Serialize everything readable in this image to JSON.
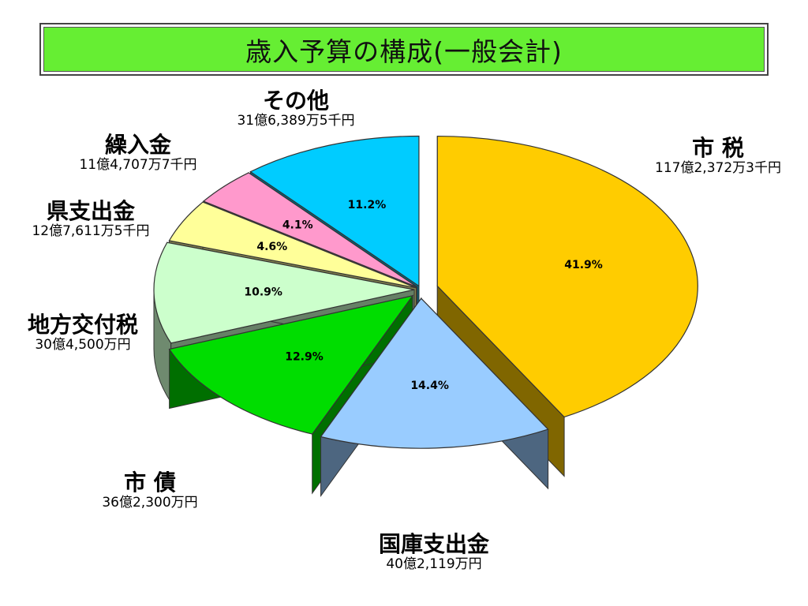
{
  "title": "歳入予算の構成(一般会計)",
  "chart_data": {
    "type": "pie",
    "title": "歳入予算の構成(一般会計)",
    "slices": [
      {
        "name": "市 税",
        "amount": "117億2,372万3千円",
        "percent": 41.9,
        "percent_label": "41.9%",
        "color": "#ffcc00"
      },
      {
        "name": "国庫支出金",
        "amount": "40億2,119万円",
        "percent": 14.4,
        "percent_label": "14.4%",
        "color": "#99ccff"
      },
      {
        "name": "市 債",
        "amount": "36億2,300万円",
        "percent": 12.9,
        "percent_label": "12.9%",
        "color": "#00dd00"
      },
      {
        "name": "地方交付税",
        "amount": "30億4,500万円",
        "percent": 10.9,
        "percent_label": "10.9%",
        "color": "#ccffcc"
      },
      {
        "name": "県支出金",
        "amount": "12億7,611万5千円",
        "percent": 4.6,
        "percent_label": "4.6%",
        "color": "#ffff99"
      },
      {
        "name": "繰入金",
        "amount": "11億4,707万7千円",
        "percent": 4.1,
        "percent_label": "4.1%",
        "color": "#ff99cc"
      },
      {
        "name": "その他",
        "amount": "31億6,389万5千円",
        "percent": 11.2,
        "percent_label": "11.2%",
        "color": "#00ccff"
      }
    ],
    "legend": "none"
  }
}
